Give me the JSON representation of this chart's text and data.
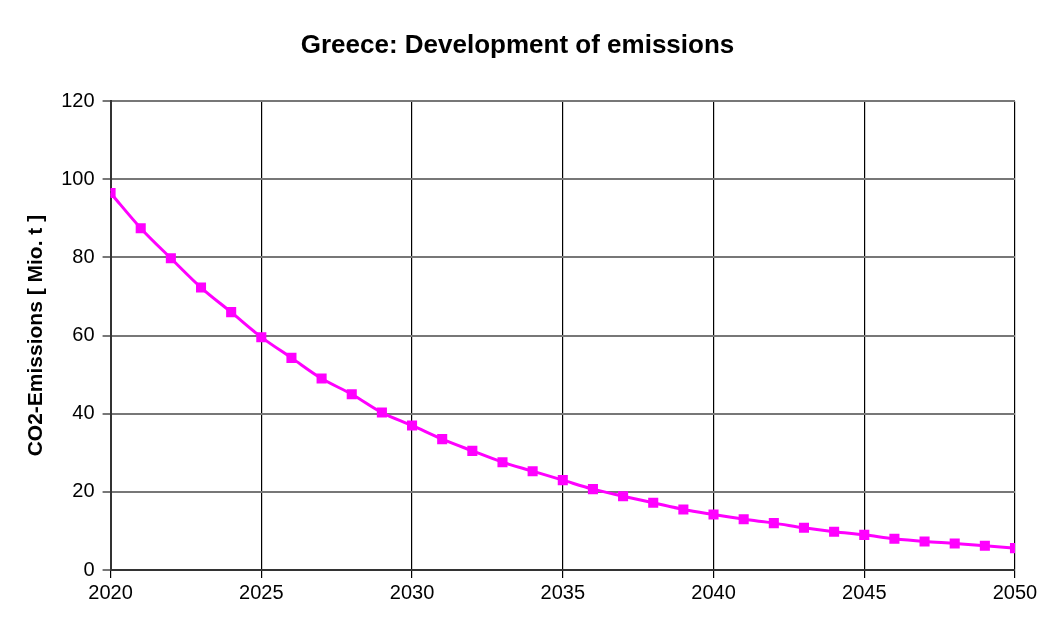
{
  "chart_data": {
    "type": "line",
    "title": "Greece: Development of emissions",
    "ylabel": "CO2-Emissions [ Mio. t ]",
    "x": [
      2020,
      2021,
      2022,
      2023,
      2024,
      2025,
      2026,
      2027,
      2028,
      2029,
      2030,
      2031,
      2032,
      2033,
      2034,
      2035,
      2036,
      2037,
      2038,
      2039,
      2040,
      2041,
      2042,
      2043,
      2044,
      2045,
      2046,
      2047,
      2048,
      2049,
      2050
    ],
    "series": [
      {
        "color": "#ff00ff",
        "values": [
          96.5,
          87.5,
          79.8,
          72.3,
          66,
          59.6,
          54.3,
          49,
          45,
          40.3,
          37,
          33.5,
          30.5,
          27.6,
          25.3,
          23,
          20.7,
          18.9,
          17.2,
          15.5,
          14.2,
          13,
          12,
          10.8,
          9.8,
          9,
          8,
          7.3,
          6.8,
          6.2,
          5.6
        ]
      }
    ],
    "xlim": [
      2020,
      2050
    ],
    "xticks": [
      2020,
      2025,
      2030,
      2035,
      2040,
      2045,
      2050
    ],
    "ylim": [
      0,
      120
    ],
    "yticks": [
      0,
      20,
      40,
      60,
      80,
      100,
      120
    ],
    "grid": true,
    "legend": false,
    "marker": "square",
    "line_style": "solid"
  }
}
